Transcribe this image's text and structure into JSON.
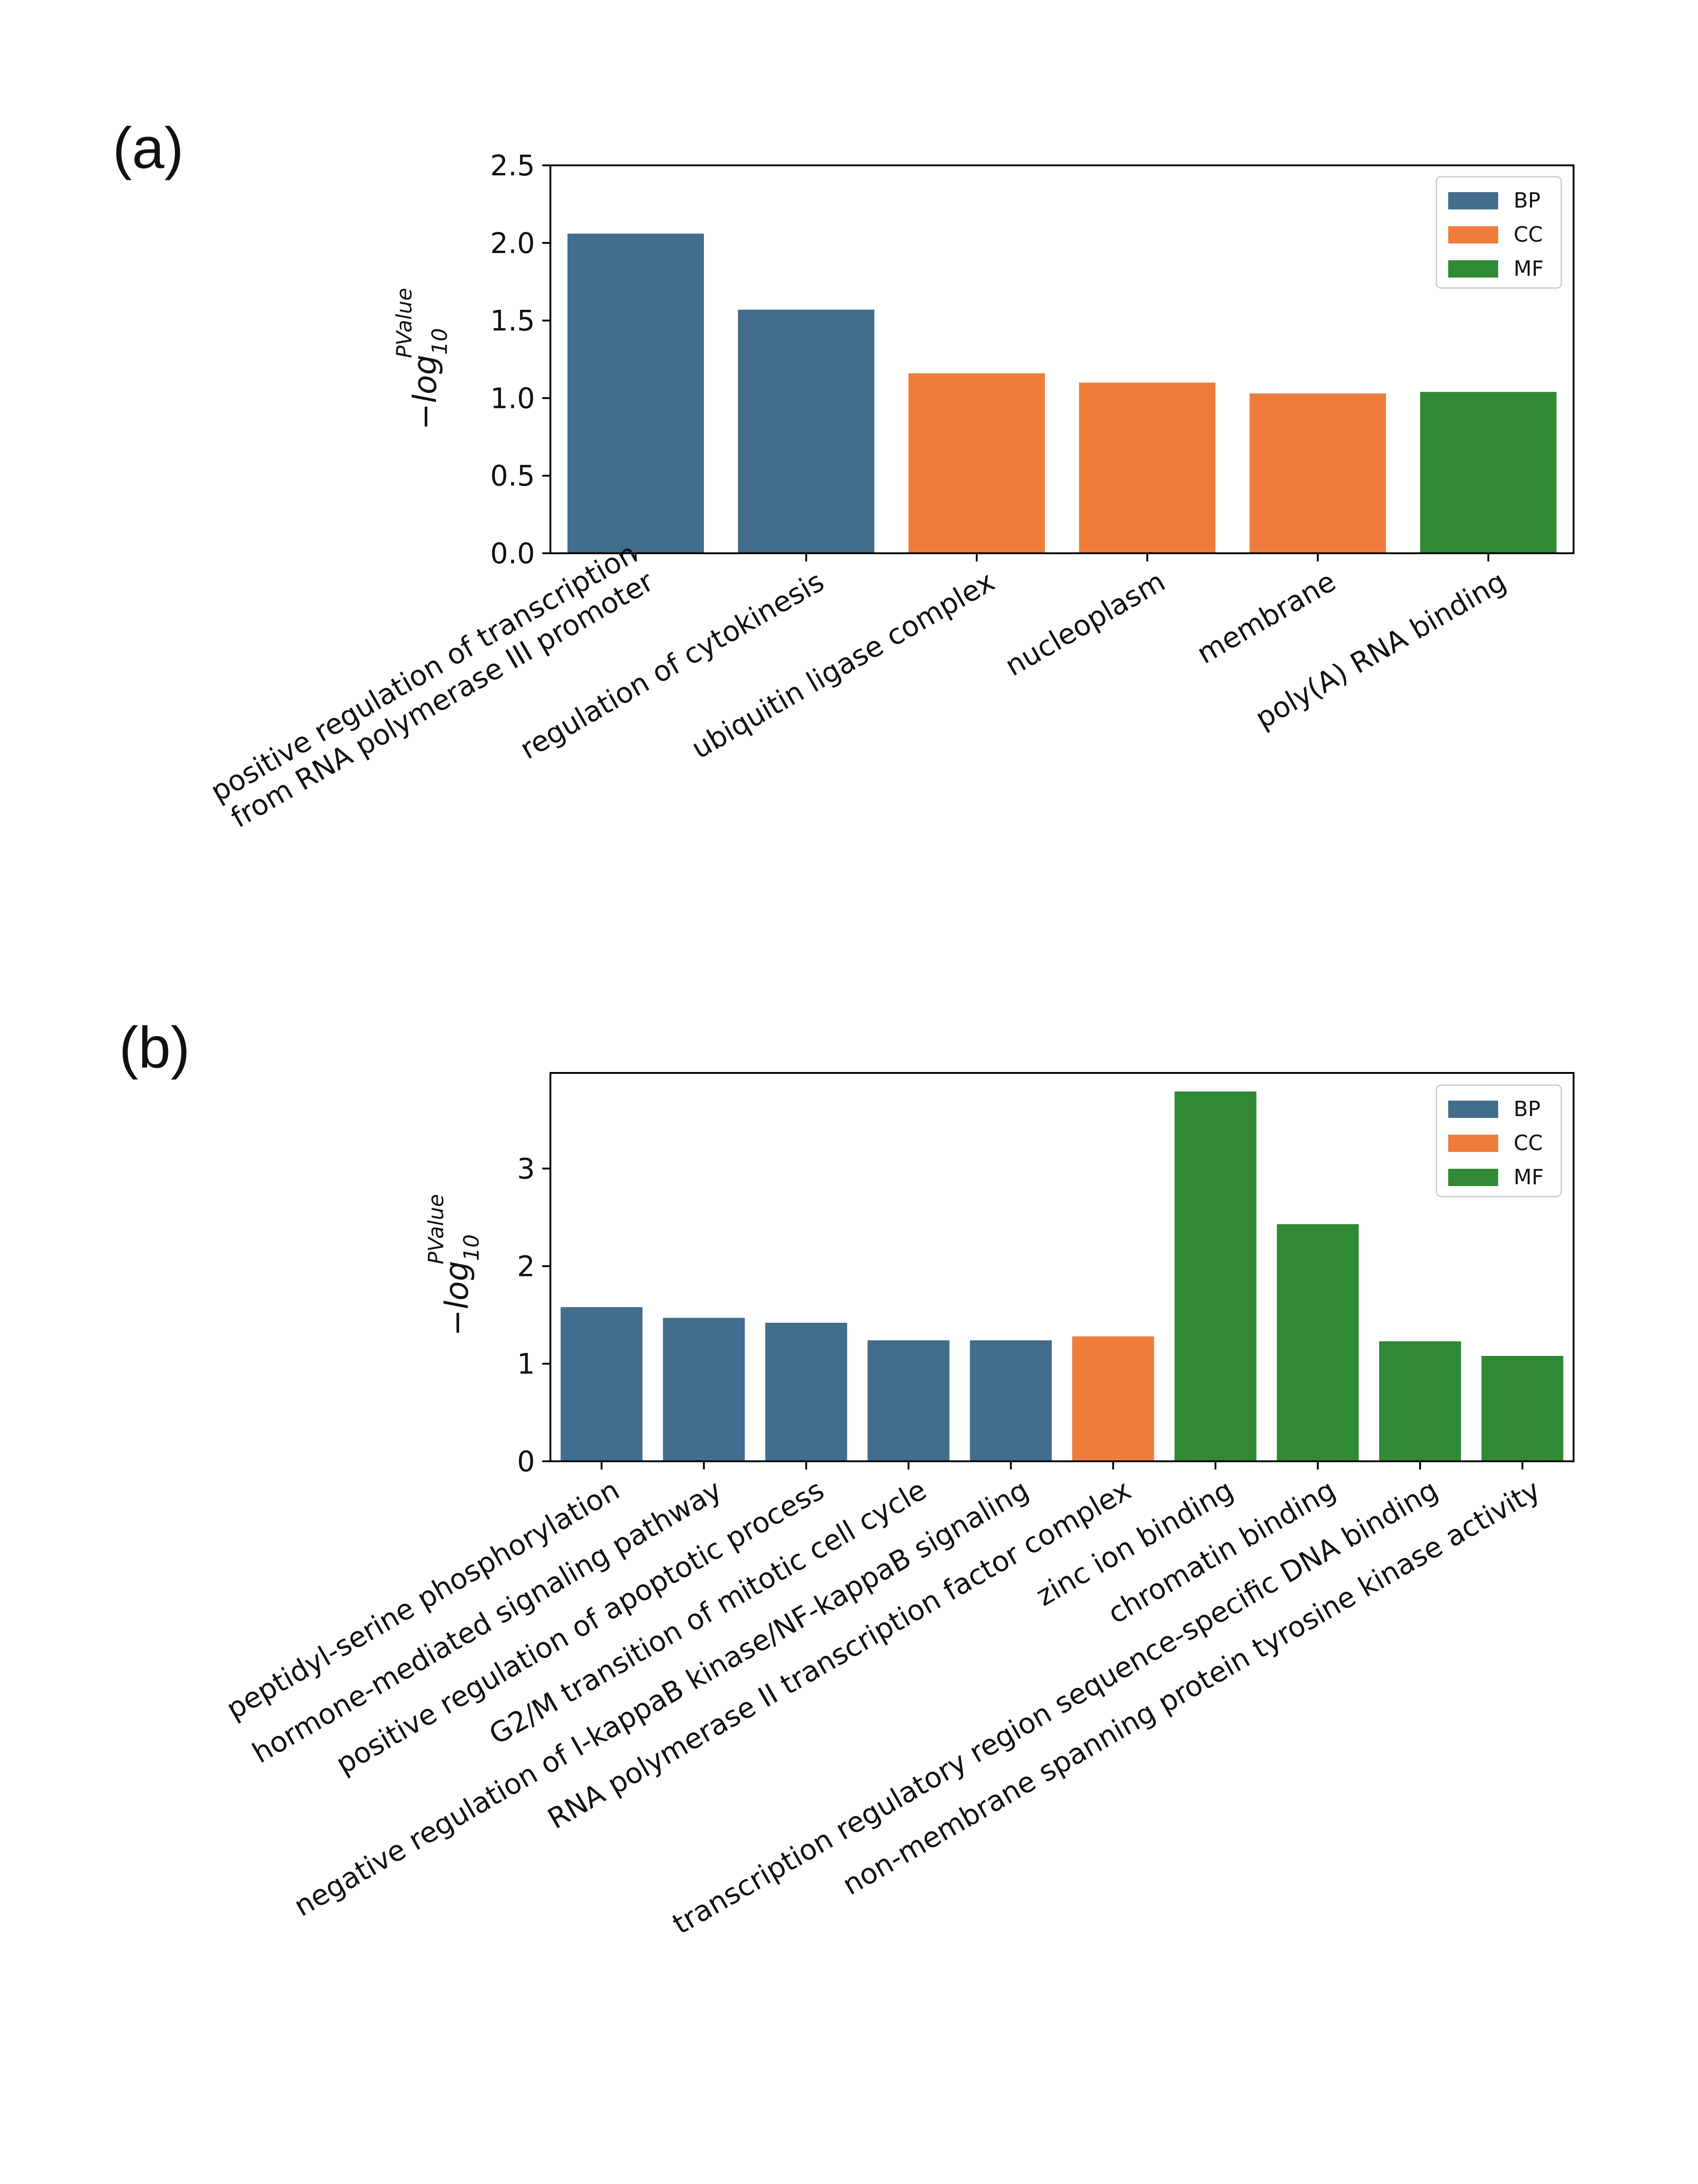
{
  "chart_data": [
    {
      "panel_label": "(a)",
      "type": "bar",
      "ylabel": {
        "minus": "−",
        "main": "log",
        "sub": "10",
        "sup": "PValue"
      },
      "ylim": [
        0,
        2.5
      ],
      "yticks": [
        0.0,
        0.5,
        1.0,
        1.5,
        2.0,
        2.5
      ],
      "ytick_labels": [
        "0.0",
        "0.5",
        "1.0",
        "1.5",
        "2.0",
        "2.5"
      ],
      "categories": [
        [
          "positive regulation of transcription",
          "from RNA polymerase III promoter"
        ],
        [
          "regulation of cytokinesis"
        ],
        [
          "ubiquitin ligase complex"
        ],
        [
          "nucleoplasm"
        ],
        [
          "membrane"
        ],
        [
          "poly(A) RNA binding"
        ]
      ],
      "values": [
        2.06,
        1.57,
        1.16,
        1.1,
        1.03,
        1.04
      ],
      "groups": [
        "BP",
        "BP",
        "CC",
        "CC",
        "CC",
        "MF"
      ],
      "legend": [
        {
          "name": "BP",
          "color": "#426D8C"
        },
        {
          "name": "CC",
          "color": "#EE7D3B"
        },
        {
          "name": "MF",
          "color": "#2F8A33"
        }
      ],
      "legend_position": "top-right"
    },
    {
      "panel_label": "(b)",
      "type": "bar",
      "ylabel": {
        "minus": "−",
        "main": "log",
        "sub": "10",
        "sup": "PValue"
      },
      "ylim": [
        0,
        3.98
      ],
      "yticks": [
        0,
        1,
        2,
        3
      ],
      "ytick_labels": [
        "0",
        "1",
        "2",
        "3"
      ],
      "categories": [
        [
          "peptidyl-serine phosphorylation"
        ],
        [
          "hormone-mediated signaling pathway"
        ],
        [
          "positive regulation of apoptotic process"
        ],
        [
          "G2/M transition of mitotic cell cycle"
        ],
        [
          "negative regulation of I-kappaB kinase/NF-kappaB signaling"
        ],
        [
          "RNA polymerase II transcription factor complex"
        ],
        [
          "zinc ion binding"
        ],
        [
          "chromatin binding"
        ],
        [
          "transcription regulatory region sequence-specific DNA binding"
        ],
        [
          "non-membrane spanning protein tyrosine kinase activity"
        ]
      ],
      "values": [
        1.58,
        1.47,
        1.42,
        1.24,
        1.24,
        1.28,
        3.79,
        2.43,
        1.23,
        1.08
      ],
      "groups": [
        "BP",
        "BP",
        "BP",
        "BP",
        "BP",
        "CC",
        "MF",
        "MF",
        "MF",
        "MF"
      ],
      "legend": [
        {
          "name": "BP",
          "color": "#426D8C"
        },
        {
          "name": "CC",
          "color": "#EE7D3B"
        },
        {
          "name": "MF",
          "color": "#2F8A33"
        }
      ],
      "legend_position": "top-right"
    }
  ]
}
